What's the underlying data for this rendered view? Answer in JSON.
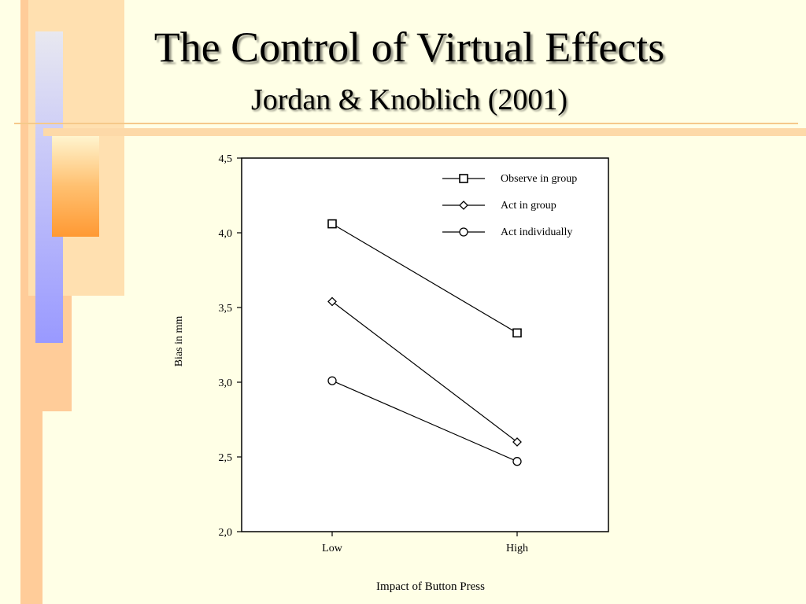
{
  "slide": {
    "title": "The Control of Virtual Effects",
    "subtitle": "Jordan & Knoblich (2001)"
  },
  "colors": {
    "background": "#FFFFE6",
    "accent_orange": "#FF9933",
    "accent_blue": "#9999FF",
    "accent_peach": "#FFCC99"
  },
  "chart_data": {
    "type": "line",
    "categories": [
      "Low",
      "High"
    ],
    "xlabel": "Impact of Button Press",
    "ylabel": "Bias in mm",
    "ylim": [
      2.0,
      4.5
    ],
    "yticks": [
      2.0,
      2.5,
      3.0,
      3.5,
      4.0,
      4.5
    ],
    "ytick_labels": [
      "2,0",
      "2,5",
      "3,0",
      "3,5",
      "4,0",
      "4,5"
    ],
    "legend_position": "top-right",
    "grid": false,
    "series": [
      {
        "name": "Observe in group",
        "marker": "square",
        "values": [
          4.06,
          3.33
        ]
      },
      {
        "name": "Act in group",
        "marker": "diamond",
        "values": [
          3.54,
          2.6
        ]
      },
      {
        "name": "Act individually",
        "marker": "circle",
        "values": [
          3.01,
          2.47
        ]
      }
    ]
  }
}
